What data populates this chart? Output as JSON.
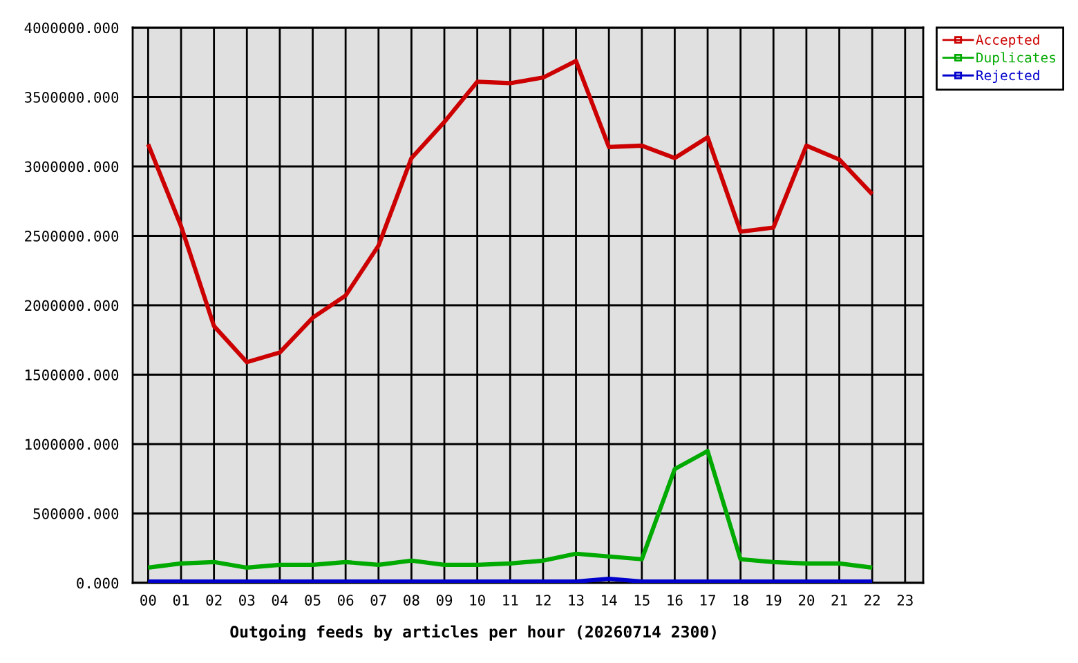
{
  "chart_data": {
    "type": "line",
    "xlabel": "Outgoing feeds by articles per hour (20260714 2300)",
    "categories": [
      "00",
      "01",
      "02",
      "03",
      "04",
      "05",
      "06",
      "07",
      "08",
      "09",
      "10",
      "11",
      "12",
      "13",
      "14",
      "15",
      "16",
      "17",
      "18",
      "19",
      "20",
      "21",
      "22",
      "23"
    ],
    "series": [
      {
        "name": "Accepted",
        "color": "#cc0000",
        "values": [
          3160000,
          2570000,
          1850000,
          1590000,
          1660000,
          1910000,
          2070000,
          2430000,
          3060000,
          3320000,
          3610000,
          3600000,
          3640000,
          3760000,
          3140000,
          3150000,
          3060000,
          3210000,
          2530000,
          2560000,
          3150000,
          3050000,
          2800000,
          null
        ]
      },
      {
        "name": "Duplicates",
        "color": "#00aa00",
        "values": [
          110000,
          140000,
          150000,
          110000,
          130000,
          130000,
          150000,
          130000,
          160000,
          130000,
          130000,
          140000,
          160000,
          210000,
          190000,
          170000,
          820000,
          950000,
          170000,
          150000,
          140000,
          140000,
          110000,
          null
        ]
      },
      {
        "name": "Rejected",
        "color": "#0000cc",
        "values": [
          10000,
          10000,
          10000,
          10000,
          10000,
          10000,
          10000,
          10000,
          10000,
          10000,
          10000,
          10000,
          10000,
          10000,
          30000,
          10000,
          10000,
          10000,
          10000,
          10000,
          10000,
          10000,
          10000,
          null
        ]
      }
    ],
    "ylim": [
      0,
      4000000
    ],
    "yticks": [
      {
        "value": 0,
        "label": "0.000"
      },
      {
        "value": 500000,
        "label": "500000.000"
      },
      {
        "value": 1000000,
        "label": "1000000.000"
      },
      {
        "value": 1500000,
        "label": "1500000.000"
      },
      {
        "value": 2000000,
        "label": "2000000.000"
      },
      {
        "value": 2500000,
        "label": "2500000.000"
      },
      {
        "value": 3000000,
        "label": "3000000.000"
      },
      {
        "value": 3500000,
        "label": "3500000.000"
      },
      {
        "value": 4000000,
        "label": "4000000.000"
      }
    ],
    "grid": true,
    "legend": "top right",
    "line_style": "solid"
  }
}
